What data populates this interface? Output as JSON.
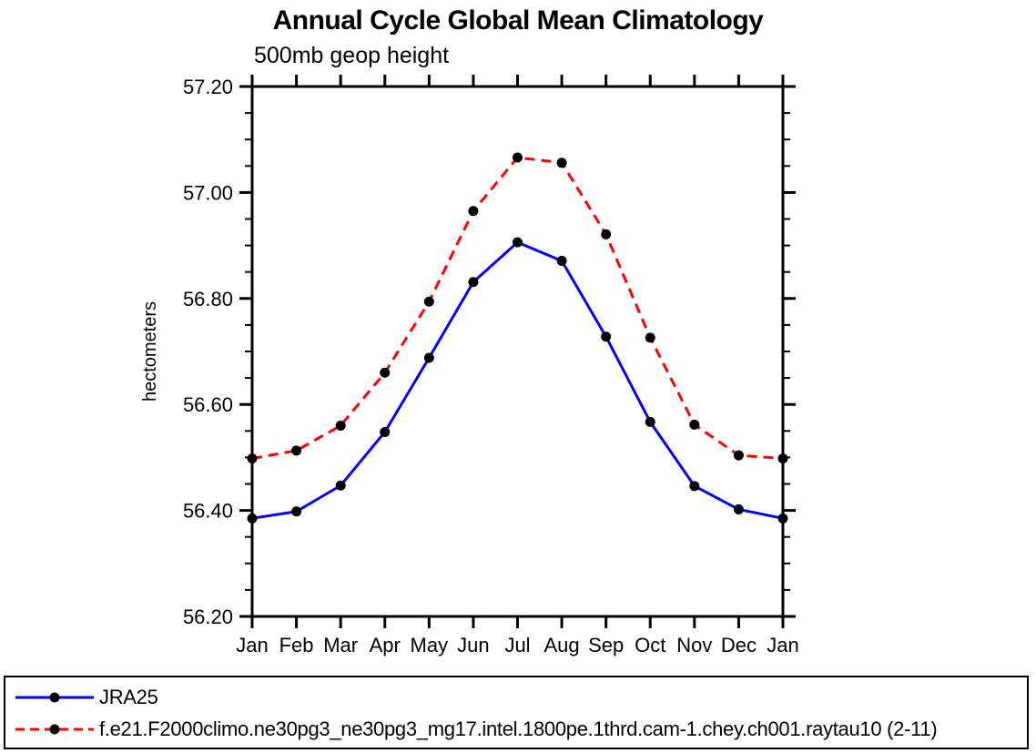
{
  "figure": {
    "title": "Annual Cycle Global Mean Climatology",
    "subtitle": "500mb geop height"
  },
  "chart_data": {
    "type": "line",
    "title": "Annual Cycle Global Mean Climatology",
    "subtitle": "500mb geop height",
    "xlabel": "",
    "ylabel": "hectometers",
    "categories": [
      "Jan",
      "Feb",
      "Mar",
      "Apr",
      "May",
      "Jun",
      "Jul",
      "Aug",
      "Sep",
      "Oct",
      "Nov",
      "Dec",
      "Jan"
    ],
    "ylim": [
      56.2,
      57.2
    ],
    "ytick_labels": [
      "56.20",
      "56.40",
      "56.60",
      "56.80",
      "57.00",
      "57.20"
    ],
    "ytick_major_step": 0.2,
    "ytick_minor_step": 0.05,
    "grid": false,
    "legend_position": "bottom-box",
    "series": [
      {
        "name": "JRA25",
        "color": "#0000ff",
        "line_style": "solid",
        "marker": "filled-circle",
        "marker_color": "#000000",
        "values": [
          56.385,
          56.398,
          56.447,
          56.548,
          56.688,
          56.831,
          56.906,
          56.871,
          56.728,
          56.567,
          56.446,
          56.402,
          56.385
        ]
      },
      {
        "name": "f.e21.F2000climo.ne30pg3_ne30pg3_mg17.intel.1800pe.1thrd.cam-1.chey.ch001.raytau10 (2-11)",
        "color": "#ff0000",
        "line_style": "dashed",
        "marker": "filled-circle",
        "marker_color": "#000000",
        "values": [
          56.498,
          56.513,
          56.56,
          56.66,
          56.794,
          56.965,
          57.066,
          57.056,
          56.921,
          56.726,
          56.562,
          56.504,
          56.498
        ]
      }
    ],
    "axis_color": "#000000",
    "background_color": "#ffffff"
  }
}
